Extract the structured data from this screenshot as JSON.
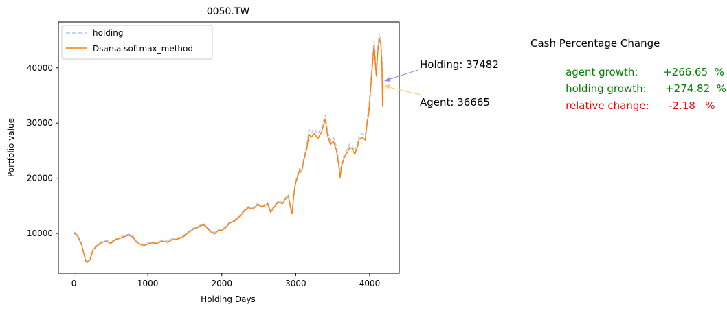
{
  "colors": {
    "holding": "#aec7e8",
    "agent": "#ff7f0e",
    "growth_text": "#008000",
    "relative_text": "#ff0000",
    "holding_arrow": "#8c8cf2",
    "agent_arrow": "#ffc77a"
  },
  "chart_data": {
    "type": "line",
    "title": "0050.TW",
    "xlabel": "Holding Days",
    "ylabel": "Portfolio value",
    "xlim": [
      -210,
      4400
    ],
    "ylim": [
      2800,
      48300
    ],
    "xticks": [
      0,
      1000,
      2000,
      3000,
      4000
    ],
    "yticks": [
      10000,
      20000,
      30000,
      40000
    ],
    "grid": false,
    "legend_position": "upper-left",
    "series": [
      {
        "name": "holding",
        "style": "dashed",
        "points": [
          [
            0,
            10300
          ],
          [
            50,
            9700
          ],
          [
            100,
            8300
          ],
          [
            140,
            6200
          ],
          [
            160,
            5200
          ],
          [
            180,
            4950
          ],
          [
            220,
            5500
          ],
          [
            260,
            7300
          ],
          [
            320,
            8000
          ],
          [
            380,
            8600
          ],
          [
            440,
            8800
          ],
          [
            500,
            8400
          ],
          [
            560,
            9100
          ],
          [
            620,
            9300
          ],
          [
            680,
            9600
          ],
          [
            740,
            9900
          ],
          [
            800,
            9500
          ],
          [
            840,
            8700
          ],
          [
            900,
            8200
          ],
          [
            950,
            8000
          ],
          [
            1000,
            8300
          ],
          [
            1060,
            8500
          ],
          [
            1120,
            8400
          ],
          [
            1200,
            8800
          ],
          [
            1260,
            8600
          ],
          [
            1320,
            9000
          ],
          [
            1400,
            9200
          ],
          [
            1450,
            9400
          ],
          [
            1500,
            9800
          ],
          [
            1550,
            10400
          ],
          [
            1620,
            11000
          ],
          [
            1680,
            11300
          ],
          [
            1750,
            11800
          ],
          [
            1800,
            11200
          ],
          [
            1850,
            10500
          ],
          [
            1900,
            10100
          ],
          [
            1950,
            10700
          ],
          [
            2000,
            10800
          ],
          [
            2050,
            11200
          ],
          [
            2100,
            12000
          ],
          [
            2180,
            12500
          ],
          [
            2250,
            13400
          ],
          [
            2300,
            14200
          ],
          [
            2360,
            14900
          ],
          [
            2420,
            14600
          ],
          [
            2480,
            15400
          ],
          [
            2550,
            15000
          ],
          [
            2620,
            15600
          ],
          [
            2660,
            14000
          ],
          [
            2700,
            14800
          ],
          [
            2760,
            15900
          ],
          [
            2820,
            15600
          ],
          [
            2870,
            16600
          ],
          [
            2900,
            17000
          ],
          [
            2935,
            14500
          ],
          [
            2950,
            13800
          ],
          [
            2980,
            17800
          ],
          [
            3000,
            19500
          ],
          [
            3050,
            21800
          ],
          [
            3080,
            21500
          ],
          [
            3110,
            23800
          ],
          [
            3150,
            26000
          ],
          [
            3180,
            28800
          ],
          [
            3210,
            28200
          ],
          [
            3250,
            28900
          ],
          [
            3300,
            28000
          ],
          [
            3350,
            29200
          ],
          [
            3400,
            31500
          ],
          [
            3430,
            28500
          ],
          [
            3470,
            26800
          ],
          [
            3510,
            27400
          ],
          [
            3550,
            25800
          ],
          [
            3580,
            23200
          ],
          [
            3600,
            20700
          ],
          [
            3620,
            22800
          ],
          [
            3660,
            24500
          ],
          [
            3700,
            25300
          ],
          [
            3730,
            26200
          ],
          [
            3760,
            26000
          ],
          [
            3800,
            24900
          ],
          [
            3840,
            26600
          ],
          [
            3860,
            27800
          ],
          [
            3900,
            28100
          ],
          [
            3940,
            27600
          ],
          [
            3960,
            30200
          ],
          [
            3990,
            32800
          ],
          [
            4010,
            36500
          ],
          [
            4040,
            42000
          ],
          [
            4060,
            45000
          ],
          [
            4070,
            43000
          ],
          [
            4090,
            39500
          ],
          [
            4110,
            43800
          ],
          [
            4130,
            46200
          ],
          [
            4150,
            45200
          ],
          [
            4165,
            42000
          ],
          [
            4180,
            37482
          ]
        ]
      },
      {
        "name": "Dsarsa softmax_method",
        "style": "solid",
        "points": [
          [
            0,
            10100
          ],
          [
            50,
            9500
          ],
          [
            100,
            8100
          ],
          [
            140,
            6000
          ],
          [
            160,
            5000
          ],
          [
            180,
            4750
          ],
          [
            220,
            5300
          ],
          [
            260,
            7100
          ],
          [
            320,
            7800
          ],
          [
            380,
            8400
          ],
          [
            440,
            8600
          ],
          [
            500,
            8200
          ],
          [
            560,
            8900
          ],
          [
            620,
            9100
          ],
          [
            680,
            9400
          ],
          [
            740,
            9700
          ],
          [
            800,
            9300
          ],
          [
            840,
            8500
          ],
          [
            900,
            8000
          ],
          [
            950,
            7800
          ],
          [
            1000,
            8100
          ],
          [
            1060,
            8300
          ],
          [
            1120,
            8200
          ],
          [
            1200,
            8600
          ],
          [
            1260,
            8400
          ],
          [
            1320,
            8800
          ],
          [
            1400,
            9000
          ],
          [
            1450,
            9200
          ],
          [
            1500,
            9600
          ],
          [
            1550,
            10200
          ],
          [
            1620,
            10800
          ],
          [
            1680,
            11100
          ],
          [
            1750,
            11600
          ],
          [
            1800,
            11000
          ],
          [
            1850,
            10300
          ],
          [
            1900,
            9900
          ],
          [
            1950,
            10500
          ],
          [
            2000,
            10600
          ],
          [
            2050,
            11000
          ],
          [
            2100,
            11800
          ],
          [
            2180,
            12300
          ],
          [
            2250,
            13200
          ],
          [
            2300,
            14000
          ],
          [
            2360,
            14700
          ],
          [
            2420,
            14400
          ],
          [
            2480,
            15200
          ],
          [
            2550,
            14800
          ],
          [
            2620,
            15400
          ],
          [
            2660,
            13800
          ],
          [
            2700,
            14600
          ],
          [
            2760,
            15700
          ],
          [
            2820,
            15400
          ],
          [
            2870,
            16400
          ],
          [
            2900,
            16800
          ],
          [
            2935,
            14300
          ],
          [
            2950,
            13600
          ],
          [
            2980,
            17600
          ],
          [
            3000,
            19200
          ],
          [
            3050,
            21400
          ],
          [
            3080,
            21100
          ],
          [
            3110,
            23300
          ],
          [
            3150,
            25400
          ],
          [
            3180,
            28000
          ],
          [
            3210,
            27400
          ],
          [
            3250,
            28100
          ],
          [
            3300,
            27200
          ],
          [
            3350,
            28400
          ],
          [
            3400,
            30700
          ],
          [
            3430,
            27800
          ],
          [
            3470,
            26100
          ],
          [
            3510,
            26700
          ],
          [
            3550,
            25100
          ],
          [
            3580,
            22500
          ],
          [
            3600,
            20100
          ],
          [
            3620,
            22200
          ],
          [
            3660,
            23900
          ],
          [
            3700,
            24700
          ],
          [
            3730,
            25600
          ],
          [
            3760,
            25400
          ],
          [
            3800,
            24300
          ],
          [
            3840,
            25900
          ],
          [
            3860,
            27100
          ],
          [
            3900,
            27400
          ],
          [
            3940,
            26900
          ],
          [
            3960,
            29400
          ],
          [
            3990,
            32000
          ],
          [
            4010,
            35600
          ],
          [
            4040,
            41000
          ],
          [
            4060,
            44000
          ],
          [
            4070,
            42000
          ],
          [
            4090,
            38500
          ],
          [
            4110,
            42800
          ],
          [
            4130,
            45300
          ],
          [
            4150,
            44300
          ],
          [
            4165,
            41000
          ],
          [
            4175,
            33000
          ],
          [
            4180,
            36665
          ]
        ]
      }
    ],
    "annotations": [
      {
        "text": "Holding: 37482",
        "x": 4180,
        "y": 37482
      },
      {
        "text": "Agent: 36665",
        "x": 4180,
        "y": 36665
      }
    ]
  },
  "side_panel": {
    "title": "Cash Percentage Change",
    "lines": [
      {
        "label": "agent growth:",
        "value": "+266.65  %",
        "color_key": "growth_text"
      },
      {
        "label": "holding growth:",
        "value": "+274.82  %",
        "color_key": "growth_text"
      },
      {
        "label": "relative change:",
        "value": "-2.18   %",
        "color_key": "relative_text"
      }
    ]
  }
}
